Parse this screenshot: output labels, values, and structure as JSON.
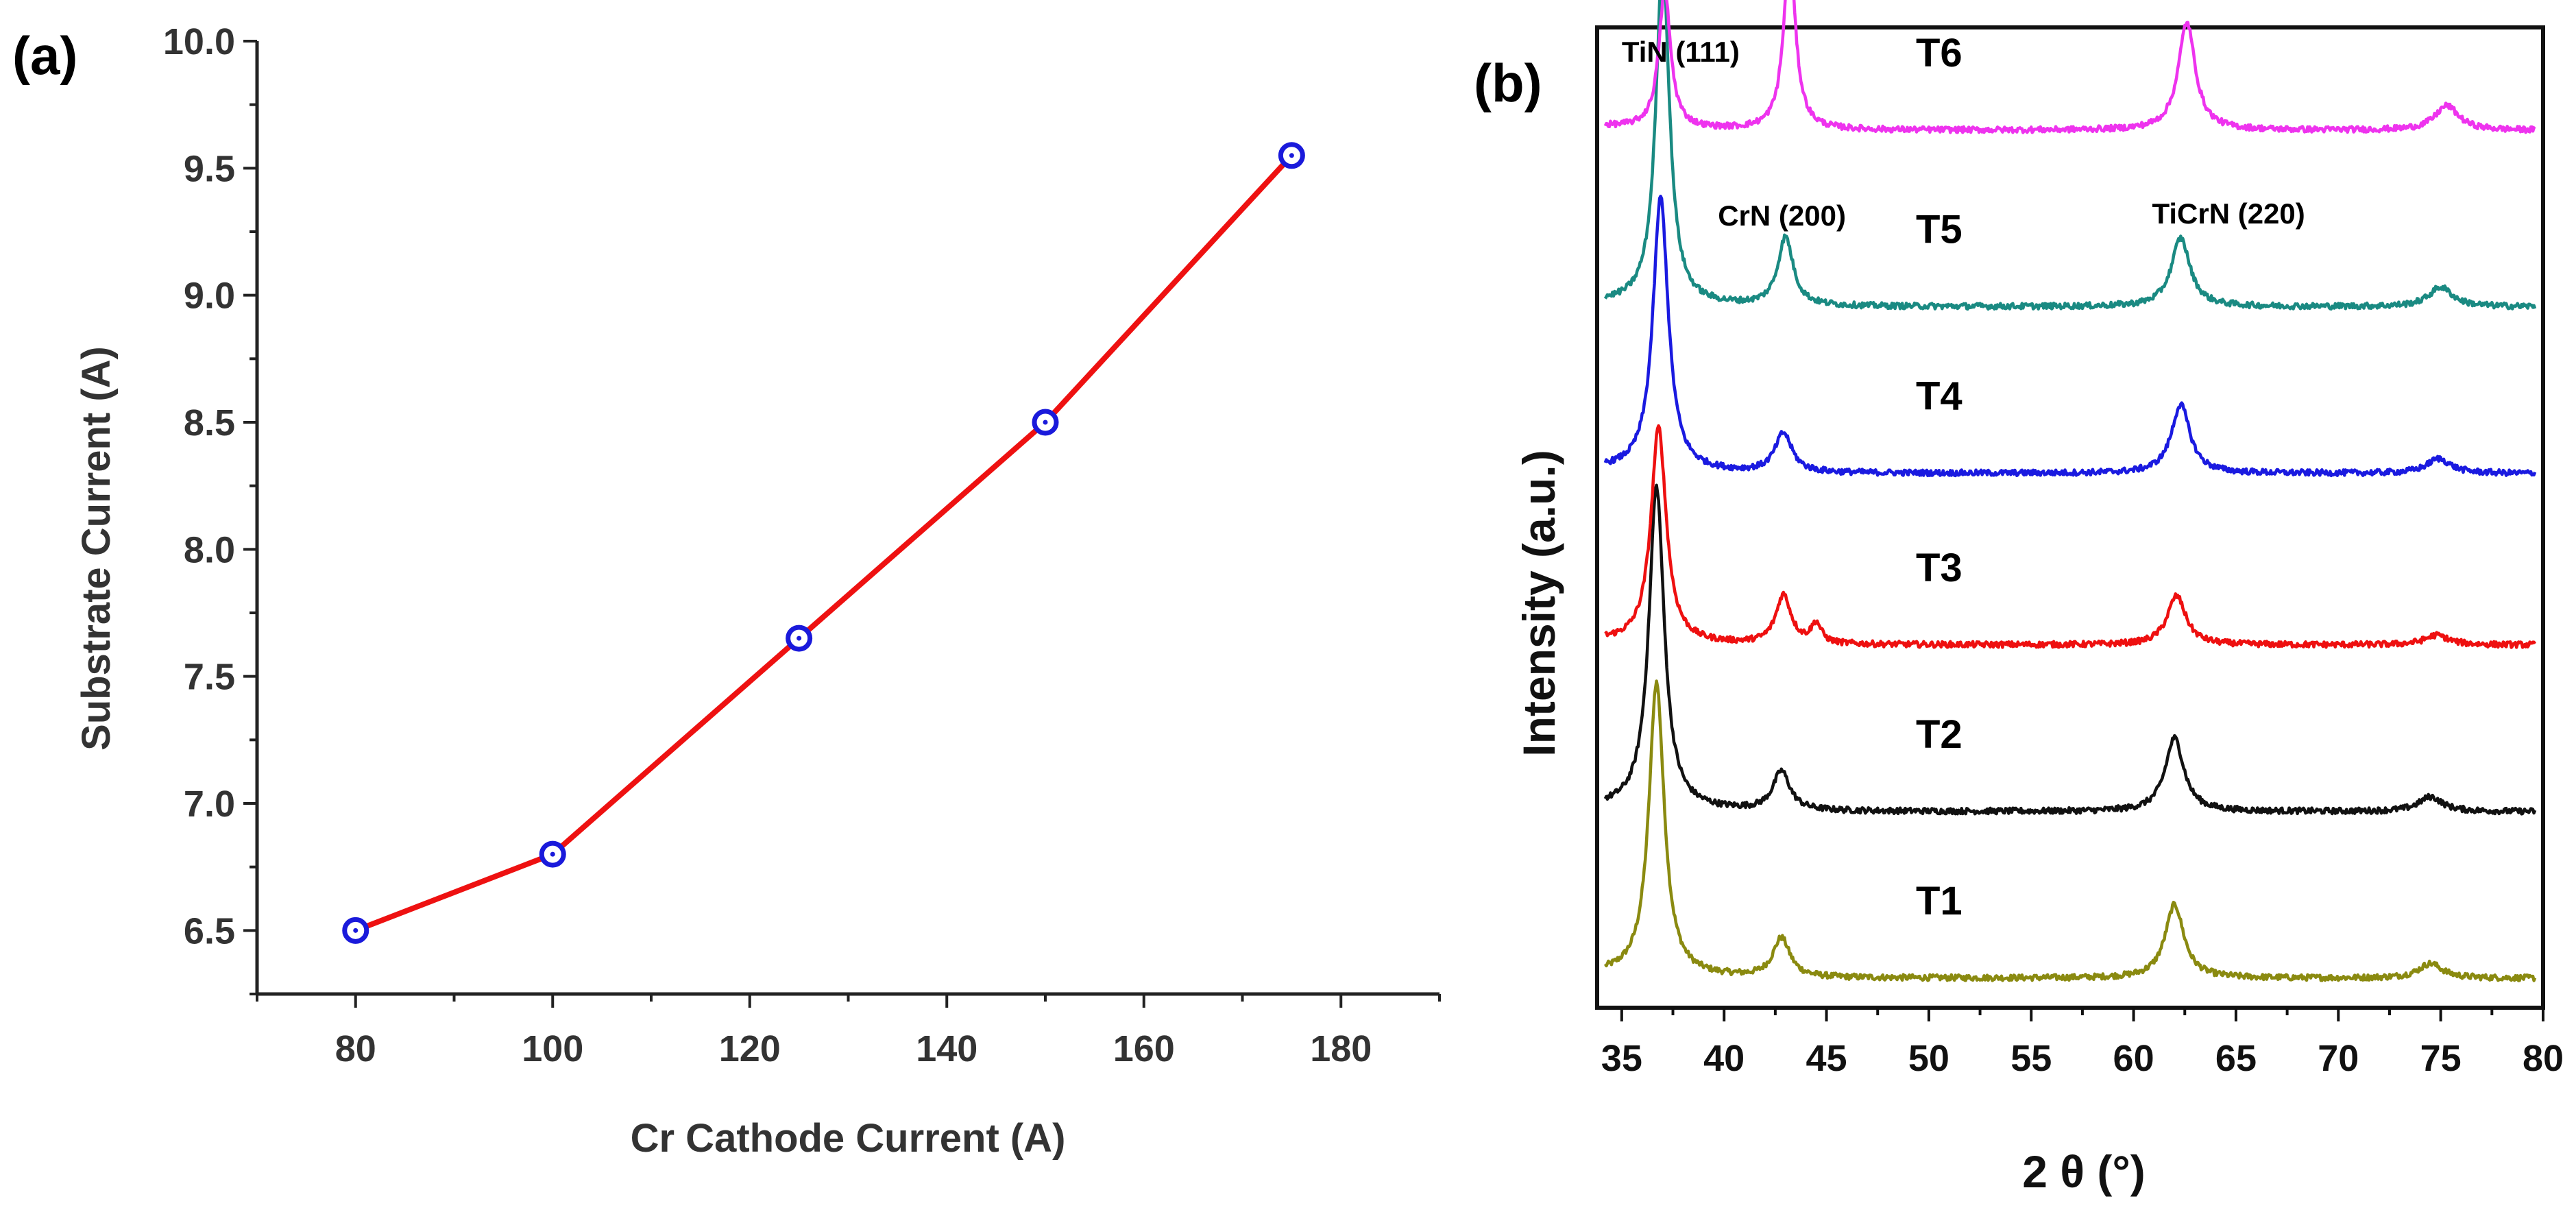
{
  "chart_data": [
    {
      "type": "line",
      "panel_label": "(a)",
      "title": "",
      "xlabel": "Cr Cathode Current (A)",
      "ylabel": "Substrate Current (A)",
      "xlim": [
        70,
        190
      ],
      "ylim": [
        6.25,
        10.0
      ],
      "x_ticks": [
        "80",
        "100",
        "120",
        "140",
        "160",
        "180"
      ],
      "y_ticks": [
        "6.5",
        "7.0",
        "7.5",
        "8.0",
        "8.5",
        "9.0",
        "9.5",
        "10.0"
      ],
      "x": [
        80,
        100,
        125,
        150,
        175
      ],
      "y": [
        6.5,
        6.8,
        7.65,
        8.5,
        9.55
      ],
      "line_color": "#ee1111",
      "marker_color": "#1a1adb",
      "grid": false,
      "legend": "none"
    },
    {
      "type": "line",
      "panel_label": "(b)",
      "title": "",
      "xlabel": "2 θ (°)",
      "ylabel": "Intensity (a.u.)",
      "xlim": [
        33.8,
        80
      ],
      "x_ticks": [
        "35",
        "40",
        "45",
        "50",
        "55",
        "60",
        "65",
        "70",
        "75",
        "80"
      ],
      "y_ticks": [],
      "grid": false,
      "legend": "inline labels",
      "peaks": [
        {
          "label": "TiN (111)",
          "two_theta": 36.8
        },
        {
          "label": "CrN (200)",
          "two_theta": 43.0
        },
        {
          "label": "TiCrN (220)",
          "two_theta": 62.3
        }
      ],
      "series": [
        {
          "name": "T1",
          "color": "#8a8a10",
          "baseline": 0.03,
          "peaks": [
            [
              36.7,
              0.3,
              0.45
            ],
            [
              42.8,
              0.04,
              0.5
            ],
            [
              62.0,
              0.075,
              0.55
            ],
            [
              74.5,
              0.015,
              0.7
            ]
          ]
        },
        {
          "name": "T2",
          "color": "#111111",
          "baseline": 0.2,
          "peaks": [
            [
              36.7,
              0.33,
              0.45
            ],
            [
              42.8,
              0.04,
              0.5
            ],
            [
              62.0,
              0.075,
              0.55
            ],
            [
              74.5,
              0.015,
              0.7
            ]
          ]
        },
        {
          "name": "T3",
          "color": "#ee1010",
          "baseline": 0.37,
          "peaks": [
            [
              36.8,
              0.22,
              0.45
            ],
            [
              42.9,
              0.05,
              0.45
            ],
            [
              44.5,
              0.02,
              0.3
            ],
            [
              62.1,
              0.05,
              0.55
            ],
            [
              74.8,
              0.01,
              0.7
            ]
          ]
        },
        {
          "name": "T4",
          "color": "#1a1ae0",
          "baseline": 0.545,
          "peaks": [
            [
              36.9,
              0.28,
              0.45
            ],
            [
              42.9,
              0.04,
              0.5
            ],
            [
              62.3,
              0.07,
              0.55
            ],
            [
              74.9,
              0.015,
              0.7
            ]
          ]
        },
        {
          "name": "T5",
          "color": "#1a8a82",
          "baseline": 0.715,
          "peaks": [
            [
              37.0,
              0.35,
              0.4
            ],
            [
              43.0,
              0.07,
              0.45
            ],
            [
              62.3,
              0.07,
              0.55
            ],
            [
              75.0,
              0.02,
              0.7
            ]
          ]
        },
        {
          "name": "T6",
          "color": "#ee33ee",
          "baseline": 0.895,
          "peaks": [
            [
              37.1,
              0.14,
              0.35
            ],
            [
              43.2,
              0.18,
              0.35
            ],
            [
              62.6,
              0.11,
              0.5
            ],
            [
              75.3,
              0.025,
              0.7
            ]
          ]
        }
      ]
    }
  ]
}
